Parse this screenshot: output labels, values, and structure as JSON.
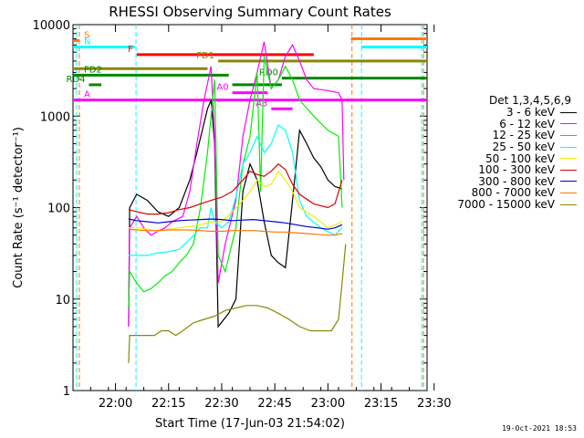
{
  "chart_data": {
    "type": "line",
    "title": "RHESSI Observing Summary Count Rates",
    "xlabel": "Start Time (17-Jun-03 21:54:02)",
    "ylabel": "Count Rate (s⁻¹ detector⁻¹)",
    "yscale": "log",
    "ylim": [
      1,
      10000
    ],
    "xlim_minutes": [
      -6,
      94
    ],
    "x_ticks": [
      "22:00",
      "22:15",
      "22:30",
      "22:45",
      "23:00",
      "23:15",
      "23:30"
    ],
    "y_ticks": [
      "1",
      "10",
      "100",
      "1000",
      "10000"
    ],
    "legend_title": "Det 1,3,4,5,6,9",
    "legend_position": "right",
    "series": [
      {
        "name": "3 - 6 keV",
        "color": "#000000",
        "points": [
          [
            9.7,
            5
          ],
          [
            10,
            100
          ],
          [
            12,
            140
          ],
          [
            15,
            120
          ],
          [
            18,
            90
          ],
          [
            21,
            80
          ],
          [
            24,
            100
          ],
          [
            27,
            200
          ],
          [
            29,
            400
          ],
          [
            32,
            1200
          ],
          [
            33,
            1500
          ],
          [
            34,
            500
          ],
          [
            35,
            5
          ],
          [
            38,
            7
          ],
          [
            40,
            10
          ],
          [
            42,
            150
          ],
          [
            44,
            300
          ],
          [
            46,
            200
          ],
          [
            48,
            70
          ],
          [
            50,
            30
          ],
          [
            52,
            25
          ],
          [
            54,
            22
          ],
          [
            56,
            120
          ],
          [
            58,
            700
          ],
          [
            60,
            500
          ],
          [
            62,
            350
          ],
          [
            64,
            280
          ],
          [
            66,
            200
          ],
          [
            68,
            170
          ],
          [
            70,
            160
          ]
        ]
      },
      {
        "name": "6 - 12 keV",
        "color": "#ff00ff",
        "points": [
          [
            9.7,
            5
          ],
          [
            10,
            60
          ],
          [
            12,
            80
          ],
          [
            14,
            60
          ],
          [
            16,
            50
          ],
          [
            18,
            55
          ],
          [
            20,
            60
          ],
          [
            22,
            70
          ],
          [
            25,
            80
          ],
          [
            27,
            150
          ],
          [
            29,
            500
          ],
          [
            31,
            1500
          ],
          [
            33,
            3500
          ],
          [
            34,
            600
          ],
          [
            35,
            15
          ],
          [
            37,
            40
          ],
          [
            40,
            120
          ],
          [
            42,
            600
          ],
          [
            44,
            1500
          ],
          [
            46,
            3000
          ],
          [
            48,
            6500
          ],
          [
            50,
            2000
          ],
          [
            52,
            2500
          ],
          [
            54,
            4500
          ],
          [
            56,
            6000
          ],
          [
            58,
            4000
          ],
          [
            60,
            2500
          ],
          [
            62,
            2000
          ],
          [
            66,
            1900
          ],
          [
            69,
            1800
          ],
          [
            70,
            1500
          ],
          [
            70.5,
            200
          ]
        ]
      },
      {
        "name": "12 - 25 keV",
        "color": "#00ee00",
        "points": [
          [
            9.7,
            8
          ],
          [
            10,
            20
          ],
          [
            12,
            15
          ],
          [
            14,
            12
          ],
          [
            16,
            13
          ],
          [
            18,
            15
          ],
          [
            20,
            18
          ],
          [
            22,
            20
          ],
          [
            24,
            25
          ],
          [
            26,
            30
          ],
          [
            28,
            40
          ],
          [
            30,
            100
          ],
          [
            32,
            400
          ],
          [
            34,
            2500
          ],
          [
            35,
            30
          ],
          [
            37,
            20
          ],
          [
            40,
            60
          ],
          [
            42,
            300
          ],
          [
            44,
            600
          ],
          [
            46,
            3000
          ],
          [
            47,
            150
          ],
          [
            48,
            4500
          ],
          [
            50,
            2000
          ],
          [
            52,
            2500
          ],
          [
            54,
            3500
          ],
          [
            56,
            2500
          ],
          [
            58,
            1500
          ],
          [
            62,
            1000
          ],
          [
            66,
            700
          ],
          [
            69,
            600
          ],
          [
            70,
            100
          ]
        ]
      },
      {
        "name": "25 - 50 keV",
        "color": "#00ffff",
        "points": [
          [
            9.7,
            30
          ],
          [
            12,
            30
          ],
          [
            15,
            30
          ],
          [
            18,
            32
          ],
          [
            21,
            33
          ],
          [
            24,
            35
          ],
          [
            27,
            45
          ],
          [
            30,
            60
          ],
          [
            32,
            60
          ],
          [
            33,
            100
          ],
          [
            34,
            70
          ],
          [
            36,
            60
          ],
          [
            38,
            70
          ],
          [
            40,
            130
          ],
          [
            42,
            300
          ],
          [
            44,
            400
          ],
          [
            46,
            600
          ],
          [
            48,
            400
          ],
          [
            50,
            500
          ],
          [
            52,
            800
          ],
          [
            54,
            700
          ],
          [
            56,
            400
          ],
          [
            58,
            120
          ],
          [
            60,
            80
          ],
          [
            64,
            60
          ],
          [
            68,
            50
          ],
          [
            70,
            60
          ]
        ]
      },
      {
        "name": "50 - 100 keV",
        "color": "#eeee00",
        "points": [
          [
            9.7,
            60
          ],
          [
            12,
            60
          ],
          [
            15,
            58
          ],
          [
            18,
            55
          ],
          [
            21,
            58
          ],
          [
            24,
            60
          ],
          [
            27,
            62
          ],
          [
            30,
            65
          ],
          [
            33,
            70
          ],
          [
            36,
            70
          ],
          [
            39,
            90
          ],
          [
            42,
            120
          ],
          [
            44,
            150
          ],
          [
            46,
            200
          ],
          [
            48,
            170
          ],
          [
            50,
            180
          ],
          [
            52,
            250
          ],
          [
            54,
            200
          ],
          [
            56,
            150
          ],
          [
            58,
            100
          ],
          [
            62,
            80
          ],
          [
            66,
            60
          ],
          [
            70,
            70
          ]
        ]
      },
      {
        "name": "100 - 300 keV",
        "color": "#dd0000",
        "points": [
          [
            9.7,
            95
          ],
          [
            12,
            90
          ],
          [
            15,
            85
          ],
          [
            18,
            85
          ],
          [
            21,
            88
          ],
          [
            24,
            95
          ],
          [
            27,
            100
          ],
          [
            30,
            110
          ],
          [
            33,
            120
          ],
          [
            36,
            130
          ],
          [
            39,
            150
          ],
          [
            42,
            200
          ],
          [
            44,
            250
          ],
          [
            46,
            230
          ],
          [
            48,
            220
          ],
          [
            50,
            250
          ],
          [
            52,
            300
          ],
          [
            54,
            260
          ],
          [
            56,
            180
          ],
          [
            58,
            140
          ],
          [
            62,
            110
          ],
          [
            66,
            100
          ],
          [
            68,
            110
          ],
          [
            70,
            200
          ]
        ]
      },
      {
        "name": "300 - 800 keV",
        "color": "#0000cc",
        "points": [
          [
            9.7,
            75
          ],
          [
            12,
            72
          ],
          [
            15,
            70
          ],
          [
            18,
            68
          ],
          [
            21,
            70
          ],
          [
            24,
            72
          ],
          [
            27,
            73
          ],
          [
            30,
            74
          ],
          [
            33,
            75
          ],
          [
            36,
            74
          ],
          [
            39,
            72
          ],
          [
            42,
            73
          ],
          [
            45,
            74
          ],
          [
            48,
            72
          ],
          [
            51,
            70
          ],
          [
            54,
            68
          ],
          [
            57,
            65
          ],
          [
            60,
            62
          ],
          [
            63,
            60
          ],
          [
            66,
            58
          ],
          [
            68,
            60
          ],
          [
            70,
            65
          ]
        ]
      },
      {
        "name": "800 - 7000 keV",
        "color": "#ff7700",
        "points": [
          [
            9.7,
            58
          ],
          [
            12,
            57
          ],
          [
            15,
            56
          ],
          [
            18,
            56
          ],
          [
            21,
            57
          ],
          [
            24,
            57
          ],
          [
            27,
            57
          ],
          [
            30,
            56
          ],
          [
            33,
            55
          ],
          [
            36,
            55
          ],
          [
            39,
            56
          ],
          [
            42,
            56
          ],
          [
            45,
            56
          ],
          [
            48,
            55
          ],
          [
            51,
            54
          ],
          [
            54,
            54
          ],
          [
            57,
            53
          ],
          [
            60,
            52
          ],
          [
            63,
            51
          ],
          [
            66,
            50
          ],
          [
            68,
            50
          ],
          [
            70,
            52
          ]
        ]
      },
      {
        "name": "7000 - 15000 keV",
        "color": "#888800",
        "points": [
          [
            9.7,
            2
          ],
          [
            10,
            4
          ],
          [
            14,
            4
          ],
          [
            17,
            4
          ],
          [
            19,
            4.5
          ],
          [
            21,
            4.5
          ],
          [
            23,
            4
          ],
          [
            25,
            4.5
          ],
          [
            28,
            5.5
          ],
          [
            31,
            6
          ],
          [
            34,
            6.5
          ],
          [
            37,
            7.5
          ],
          [
            40,
            8
          ],
          [
            43,
            8.5
          ],
          [
            46,
            8.5
          ],
          [
            49,
            8
          ],
          [
            52,
            7
          ],
          [
            55,
            6
          ],
          [
            58,
            5
          ],
          [
            61,
            4.5
          ],
          [
            64,
            4.5
          ],
          [
            67,
            4.5
          ],
          [
            69,
            6
          ],
          [
            70,
            15
          ],
          [
            71,
            40
          ]
        ]
      }
    ],
    "annotations": [
      {
        "label": "S",
        "color": "#ff7700",
        "x0": -6,
        "x1": -4.3,
        "y": 6700
      },
      {
        "label": "",
        "color": "#ff7700",
        "x0": 72.5,
        "x1": 94,
        "y": 7000
      },
      {
        "label": "N",
        "color": "#00ffff",
        "x0": -6,
        "x1": 11.5,
        "y": 5700
      },
      {
        "label": "",
        "color": "#00ffff",
        "x0": 75.5,
        "x1": 94,
        "y": 5700
      },
      {
        "label": "F",
        "color": "#ff0000",
        "x0": 12,
        "x1": 62,
        "y": 4700
      },
      {
        "label": "FD1",
        "color": "#888800",
        "x0": 35,
        "x1": 94,
        "y": 4000
      },
      {
        "label": "",
        "color": "#888800",
        "x0": -6,
        "x1": 32,
        "y": 3300
      },
      {
        "label": "FD2",
        "color": "#008800",
        "x0": -6,
        "x1": 38,
        "y": 2800
      },
      {
        "label": "RD0",
        "color": "#008800",
        "x0": 53,
        "x1": 94,
        "y": 2600
      },
      {
        "label": "RD4",
        "color": "#008800",
        "x0": -1.5,
        "x1": 2,
        "y": 2200
      },
      {
        "label": "",
        "color": "#008800",
        "x0": 39,
        "x1": 53,
        "y": 2200
      },
      {
        "label": "A",
        "color": "#ff00ff",
        "x0": -6,
        "x1": 94,
        "y": 1500
      },
      {
        "label": "A0",
        "color": "#ff00ff",
        "x0": 39,
        "x1": 49,
        "y": 1800
      },
      {
        "label": "A3",
        "color": "#ff00ff",
        "x0": 50,
        "x1": 56,
        "y": 1200
      },
      {
        "label": "",
        "color": "#ff00ff",
        "x0": 31,
        "x1": 36,
        "y": 1500
      }
    ],
    "vlines": [
      {
        "x": -5,
        "color": "#00ffff"
      },
      {
        "x": -4.2,
        "color": "#ff7700"
      },
      {
        "x": 11.8,
        "color": "#00ffff"
      },
      {
        "x": 72.8,
        "color": "#ff7700"
      },
      {
        "x": 75.5,
        "color": "#00ffff"
      },
      {
        "x": 92.5,
        "color": "#00ffff"
      },
      {
        "x": 93,
        "color": "#ff7700"
      }
    ]
  },
  "timestamp": "19-Oct-2021 18:53"
}
